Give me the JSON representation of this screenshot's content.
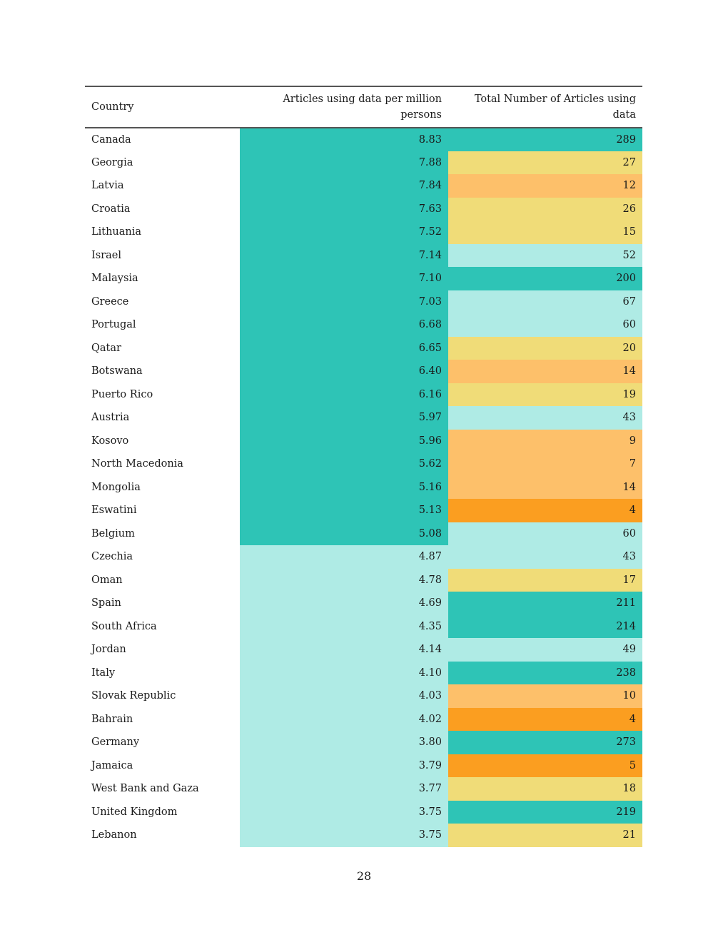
{
  "table": {
    "headers": {
      "country": "Country",
      "per_million": "Articles using data per million persons",
      "total": "Total Number of Articles using data"
    },
    "legend_colors": {
      "dark_teal": "#2ec4b6",
      "light_teal": "#afebe5",
      "yellow": "#f0dc78",
      "light_orange": "#fdc06a",
      "orange": "#fb9e20"
    },
    "rows": [
      {
        "country": "Canada",
        "per_million": "8.83",
        "total": "289",
        "pm_color": "#2ec4b6",
        "total_color": "#2ec4b6"
      },
      {
        "country": "Georgia",
        "per_million": "7.88",
        "total": "27",
        "pm_color": "#2ec4b6",
        "total_color": "#f0dc78"
      },
      {
        "country": "Latvia",
        "per_million": "7.84",
        "total": "12",
        "pm_color": "#2ec4b6",
        "total_color": "#fdc06a"
      },
      {
        "country": "Croatia",
        "per_million": "7.63",
        "total": "26",
        "pm_color": "#2ec4b6",
        "total_color": "#f0dc78"
      },
      {
        "country": "Lithuania",
        "per_million": "7.52",
        "total": "15",
        "pm_color": "#2ec4b6",
        "total_color": "#f0dc78"
      },
      {
        "country": "Israel",
        "per_million": "7.14",
        "total": "52",
        "pm_color": "#2ec4b6",
        "total_color": "#afebe5"
      },
      {
        "country": "Malaysia",
        "per_million": "7.10",
        "total": "200",
        "pm_color": "#2ec4b6",
        "total_color": "#2ec4b6"
      },
      {
        "country": "Greece",
        "per_million": "7.03",
        "total": "67",
        "pm_color": "#2ec4b6",
        "total_color": "#afebe5"
      },
      {
        "country": "Portugal",
        "per_million": "6.68",
        "total": "60",
        "pm_color": "#2ec4b6",
        "total_color": "#afebe5"
      },
      {
        "country": "Qatar",
        "per_million": "6.65",
        "total": "20",
        "pm_color": "#2ec4b6",
        "total_color": "#f0dc78"
      },
      {
        "country": "Botswana",
        "per_million": "6.40",
        "total": "14",
        "pm_color": "#2ec4b6",
        "total_color": "#fdc06a"
      },
      {
        "country": "Puerto Rico",
        "per_million": "6.16",
        "total": "19",
        "pm_color": "#2ec4b6",
        "total_color": "#f0dc78"
      },
      {
        "country": "Austria",
        "per_million": "5.97",
        "total": "43",
        "pm_color": "#2ec4b6",
        "total_color": "#afebe5"
      },
      {
        "country": "Kosovo",
        "per_million": "5.96",
        "total": "9",
        "pm_color": "#2ec4b6",
        "total_color": "#fdc06a"
      },
      {
        "country": "North Macedonia",
        "per_million": "5.62",
        "total": "7",
        "pm_color": "#2ec4b6",
        "total_color": "#fdc06a"
      },
      {
        "country": "Mongolia",
        "per_million": "5.16",
        "total": "14",
        "pm_color": "#2ec4b6",
        "total_color": "#fdc06a"
      },
      {
        "country": "Eswatini",
        "per_million": "5.13",
        "total": "4",
        "pm_color": "#2ec4b6",
        "total_color": "#fb9e20"
      },
      {
        "country": "Belgium",
        "per_million": "5.08",
        "total": "60",
        "pm_color": "#2ec4b6",
        "total_color": "#afebe5"
      },
      {
        "country": "Czechia",
        "per_million": "4.87",
        "total": "43",
        "pm_color": "#afebe5",
        "total_color": "#afebe5"
      },
      {
        "country": "Oman",
        "per_million": "4.78",
        "total": "17",
        "pm_color": "#afebe5",
        "total_color": "#f0dc78"
      },
      {
        "country": "Spain",
        "per_million": "4.69",
        "total": "211",
        "pm_color": "#afebe5",
        "total_color": "#2ec4b6"
      },
      {
        "country": "South Africa",
        "per_million": "4.35",
        "total": "214",
        "pm_color": "#afebe5",
        "total_color": "#2ec4b6"
      },
      {
        "country": "Jordan",
        "per_million": "4.14",
        "total": "49",
        "pm_color": "#afebe5",
        "total_color": "#afebe5"
      },
      {
        "country": "Italy",
        "per_million": "4.10",
        "total": "238",
        "pm_color": "#afebe5",
        "total_color": "#2ec4b6"
      },
      {
        "country": "Slovak Republic",
        "per_million": "4.03",
        "total": "10",
        "pm_color": "#afebe5",
        "total_color": "#fdc06a"
      },
      {
        "country": "Bahrain",
        "per_million": "4.02",
        "total": "4",
        "pm_color": "#afebe5",
        "total_color": "#fb9e20"
      },
      {
        "country": "Germany",
        "per_million": "3.80",
        "total": "273",
        "pm_color": "#afebe5",
        "total_color": "#2ec4b6"
      },
      {
        "country": "Jamaica",
        "per_million": "3.79",
        "total": "5",
        "pm_color": "#afebe5",
        "total_color": "#fb9e20"
      },
      {
        "country": "West Bank and Gaza",
        "per_million": "3.77",
        "total": "18",
        "pm_color": "#afebe5",
        "total_color": "#f0dc78"
      },
      {
        "country": "United Kingdom",
        "per_million": "3.75",
        "total": "219",
        "pm_color": "#afebe5",
        "total_color": "#2ec4b6"
      },
      {
        "country": "Lebanon",
        "per_million": "3.75",
        "total": "21",
        "pm_color": "#afebe5",
        "total_color": "#f0dc78"
      }
    ]
  },
  "page_number": "28"
}
